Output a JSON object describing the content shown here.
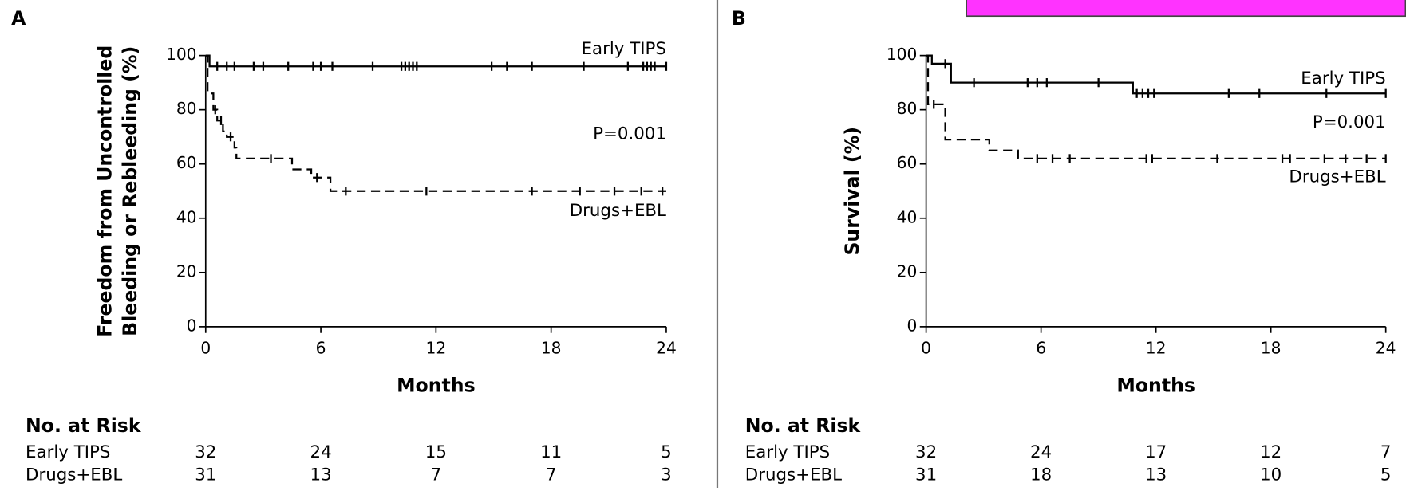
{
  "chart_data": [
    {
      "type": "kaplan-meier",
      "panel_label": "A",
      "annotation": "P=0.001",
      "ylabel": [
        "Freedom from Uncontrolled",
        "Bleeding or Rebleeding (%)"
      ],
      "xlabel": "Months",
      "xlim": [
        0,
        24
      ],
      "xticks": [
        0,
        6,
        12,
        18,
        24
      ],
      "ylim": [
        0,
        100
      ],
      "yticks": [
        0,
        20,
        40,
        60,
        80,
        100
      ],
      "series": [
        {
          "name": "Early TIPS",
          "color": "#000000",
          "dashed": false,
          "x": [
            0,
            0.2,
            24
          ],
          "values": [
            100,
            96,
            96
          ],
          "censored": {
            "x": [
              0.6,
              1.1,
              1.5,
              2.5,
              3.0,
              4.3,
              5.6,
              6.0,
              6.6,
              8.7,
              10.2,
              10.4,
              10.6,
              10.8,
              11.0,
              14.9,
              15.7,
              17.0,
              19.7,
              22.0,
              22.8,
              23.0,
              23.2,
              23.4,
              24
            ],
            "values": [
              96,
              96,
              96,
              96,
              96,
              96,
              96,
              96,
              96,
              96,
              96,
              96,
              96,
              96,
              96,
              96,
              96,
              96,
              96,
              96,
              96,
              96,
              96,
              96,
              96
            ]
          }
        },
        {
          "name": "Drugs+EBL",
          "color": "#000000",
          "dashed": true,
          "x": [
            0,
            0.1,
            0.4,
            0.6,
            0.9,
            1.1,
            1.5,
            1.6,
            4.5,
            5.5,
            6.5,
            24
          ],
          "values": [
            100,
            86,
            80,
            76,
            72,
            70,
            66,
            62,
            58,
            55,
            50,
            50
          ],
          "censored": {
            "x": [
              0.5,
              0.8,
              1.3,
              3.4,
              5.8,
              7.3,
              11.5,
              17.0,
              19.5,
              21.3,
              22.7,
              23.8
            ],
            "values": [
              80,
              76,
              70,
              62,
              55,
              50,
              50,
              50,
              50,
              50,
              50,
              50
            ]
          }
        }
      ],
      "risk_table": {
        "title": "No. at Risk",
        "values": [
          [
            32,
            24,
            15,
            11,
            5
          ],
          [
            31,
            13,
            7,
            7,
            3
          ]
        ]
      }
    },
    {
      "type": "kaplan-meier",
      "panel_label": "B",
      "annotation": "P=0.001",
      "ylabel": [
        "Survival (%)"
      ],
      "xlabel": "Months",
      "xlim": [
        0,
        24
      ],
      "xticks": [
        0,
        6,
        12,
        18,
        24
      ],
      "ylim": [
        0,
        100
      ],
      "yticks": [
        0,
        20,
        40,
        60,
        80,
        100
      ],
      "series": [
        {
          "name": "Early TIPS",
          "color": "#000000",
          "dashed": false,
          "x": [
            0,
            0.3,
            1.3,
            10.8,
            24
          ],
          "values": [
            100,
            97,
            90,
            86,
            86
          ],
          "censored": {
            "x": [
              1.0,
              2.5,
              5.3,
              5.8,
              6.3,
              9.0,
              11.0,
              11.3,
              11.6,
              11.9,
              15.8,
              17.4,
              20.9,
              24
            ],
            "values": [
              97,
              90,
              90,
              90,
              90,
              90,
              86,
              86,
              86,
              86,
              86,
              86,
              86,
              86
            ]
          }
        },
        {
          "name": "Drugs+EBL",
          "color": "#000000",
          "dashed": true,
          "x": [
            0,
            0.1,
            1.0,
            3.3,
            4.8,
            24
          ],
          "values": [
            100,
            82,
            69,
            65,
            62,
            62
          ],
          "censored": {
            "x": [
              0.4,
              5.8,
              6.6,
              7.5,
              11.5,
              11.8,
              15.2,
              18.6,
              19.0,
              20.8,
              21.9,
              23.0,
              24
            ],
            "values": [
              82,
              62,
              62,
              62,
              62,
              62,
              62,
              62,
              62,
              62,
              62,
              62,
              62
            ]
          }
        }
      ],
      "risk_table": {
        "title": "No. at Risk",
        "values": [
          [
            32,
            24,
            17,
            12,
            7
          ],
          [
            31,
            18,
            13,
            10,
            5
          ]
        ]
      }
    }
  ]
}
